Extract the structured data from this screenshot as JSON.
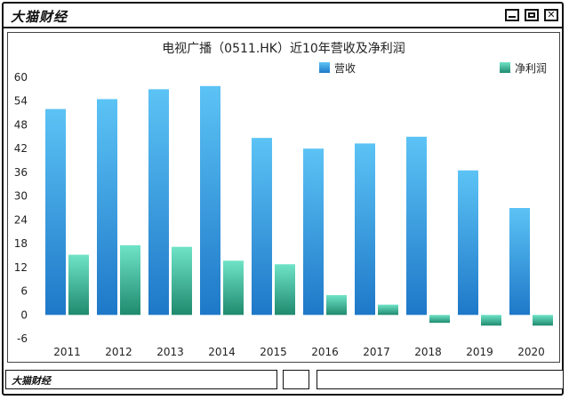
{
  "window": {
    "title": "大猫财经",
    "status_text": "大猫财经"
  },
  "colors": {
    "revenue_top": "#5cc3f5",
    "revenue_bottom": "#1e78c8",
    "profit_top": "#6fe3c7",
    "profit_bottom": "#1f8a6e"
  },
  "chart_data": {
    "type": "bar",
    "title": "电视广播（0511.HK）近10年营收及净利润",
    "categories": [
      "2011",
      "2012",
      "2013",
      "2014",
      "2015",
      "2016",
      "2017",
      "2018",
      "2019",
      "2020"
    ],
    "series": [
      {
        "name": "营收",
        "values": [
          52,
          54.5,
          57,
          57.8,
          44.7,
          42,
          43.3,
          45,
          36.5,
          27
        ]
      },
      {
        "name": "净利润",
        "values": [
          15.2,
          17.6,
          17.2,
          13.7,
          12.8,
          5,
          2.6,
          -2,
          -2.7,
          -2.7
        ]
      }
    ],
    "ylim": [
      -6,
      60
    ],
    "yticks": [
      -6,
      0,
      6,
      12,
      18,
      24,
      30,
      36,
      42,
      48,
      54,
      60
    ],
    "legend_position": "top-right",
    "grid": false
  }
}
